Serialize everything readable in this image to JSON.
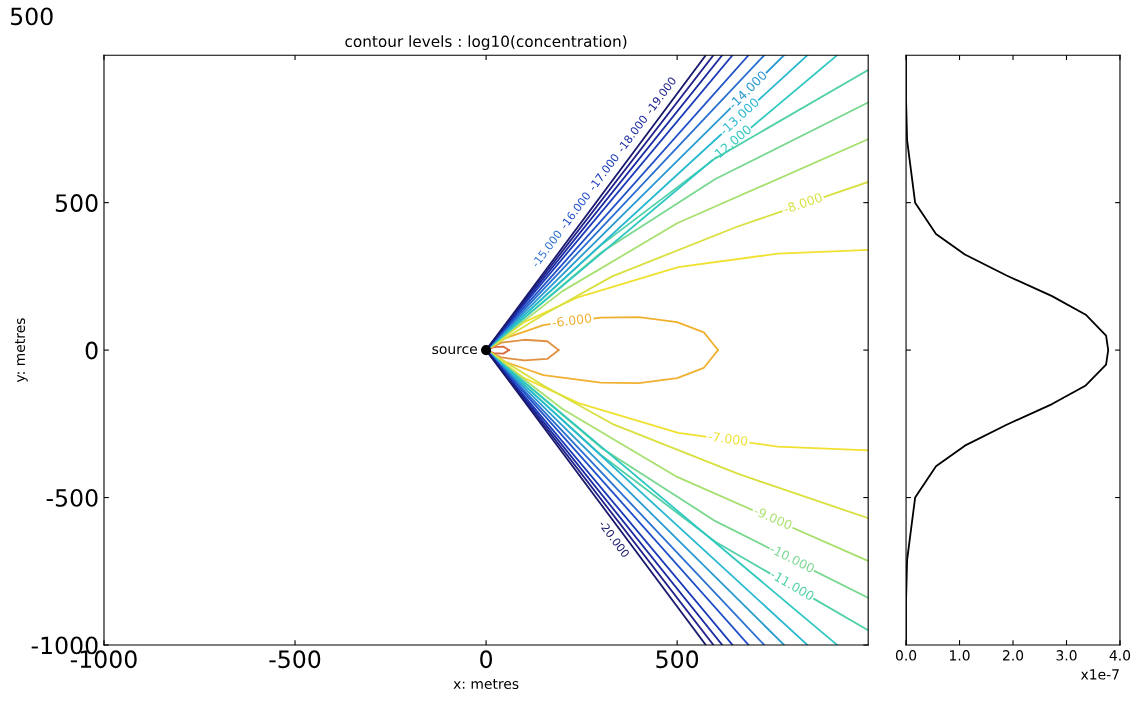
{
  "chart_data": [
    {
      "type": "line",
      "title": "contour levels : log10(concentration)",
      "xlabel": "x: metres",
      "ylabel": "y: metres",
      "annotations": [
        "500"
      ],
      "xlim": [
        -1000,
        1000
      ],
      "xticks": [
        -1000,
        -500,
        0,
        500
      ],
      "ylim": [
        -1000,
        1000
      ],
      "yticks": [
        -1000,
        -500,
        0,
        500
      ],
      "grid": false,
      "legend": false,
      "marker": "none",
      "line_style": "solid",
      "series": [
        {
          "color": "#d86a40",
          "x": [
            0,
            20,
            45,
            60
          ],
          "values": [
            0,
            10,
            12,
            0
          ]
        },
        {
          "color": "#d86a40",
          "x": [
            0,
            20,
            45,
            60
          ],
          "values": [
            0,
            -10,
            -12,
            0
          ]
        },
        {
          "color": "#e09040",
          "x": [
            0,
            40,
            100,
            160,
            190
          ],
          "values": [
            0,
            25,
            35,
            30,
            0
          ]
        },
        {
          "color": "#e09040",
          "x": [
            0,
            40,
            100,
            160,
            190
          ],
          "values": [
            0,
            -25,
            -35,
            -30,
            0
          ]
        },
        {
          "name": "-6.000",
          "color": "#f0b030",
          "x": [
            0,
            50,
            150,
            300,
            400,
            500,
            570,
            607
          ],
          "values": [
            0,
            40,
            85,
            110,
            112,
            95,
            60,
            0
          ]
        },
        {
          "color": "#f0b030",
          "x": [
            0,
            50,
            150,
            300,
            400,
            500,
            570,
            607
          ],
          "values": [
            0,
            -40,
            -85,
            -110,
            -112,
            -95,
            -60,
            0
          ]
        },
        {
          "color": "#f0e030",
          "x": [
            0,
            100,
            242,
            503,
            763,
            1000
          ],
          "values": [
            0,
            95,
            180,
            281,
            327,
            340
          ]
        },
        {
          "name": "-7.000",
          "color": "#f0e030",
          "x": [
            0,
            100,
            242,
            503,
            763,
            1000
          ],
          "values": [
            0,
            -95,
            -180,
            -281,
            -327,
            -340
          ]
        },
        {
          "name": "-8.000",
          "color": "#d8e040",
          "x": [
            0,
            150,
            330,
            660,
            1000
          ],
          "values": [
            0,
            120,
            250,
            420,
            570
          ]
        },
        {
          "color": "#d8e040",
          "x": [
            0,
            150,
            330,
            660,
            1000
          ],
          "values": [
            0,
            -120,
            -250,
            -420,
            -570
          ]
        },
        {
          "color": "#a8e070",
          "x": [
            0,
            200,
            500,
            1000
          ],
          "values": [
            0,
            200,
            430,
            715
          ]
        },
        {
          "name": "-9.000",
          "color": "#a8e070",
          "x": [
            0,
            200,
            500,
            1000
          ],
          "values": [
            0,
            -200,
            -430,
            -715
          ]
        },
        {
          "color": "#78d890",
          "x": [
            0,
            300,
            600,
            1000
          ],
          "values": [
            0,
            330,
            580,
            840
          ]
        },
        {
          "name": "-10.000",
          "color": "#78d890",
          "x": [
            0,
            300,
            600,
            1000
          ],
          "values": [
            0,
            -330,
            -580,
            -840
          ]
        },
        {
          "color": "#50d0a8",
          "x": [
            0,
            300,
            600,
            1000
          ],
          "values": [
            0,
            355,
            650,
            950
          ]
        },
        {
          "name": "-11.000",
          "color": "#50d0a8",
          "x": [
            0,
            300,
            600,
            1000
          ],
          "values": [
            0,
            -355,
            -650,
            -950
          ]
        },
        {
          "name": "-12.000",
          "color": "#30c8c0",
          "x": [
            0,
            919
          ],
          "values": [
            0,
            1000
          ]
        },
        {
          "color": "#30c8c0",
          "x": [
            0,
            919
          ],
          "values": [
            0,
            -1000
          ]
        },
        {
          "name": "-13.000",
          "color": "#28b8d0",
          "x": [
            0,
            841
          ],
          "values": [
            0,
            1000
          ]
        },
        {
          "color": "#28b8d0",
          "x": [
            0,
            841
          ],
          "values": [
            0,
            -1000
          ]
        },
        {
          "name": "-14.000",
          "color": "#2a9ad0",
          "x": [
            0,
            780
          ],
          "values": [
            0,
            1000
          ]
        },
        {
          "color": "#2a9ad0",
          "x": [
            0,
            780
          ],
          "values": [
            0,
            -1000
          ]
        },
        {
          "name": "-15.000",
          "color": "#2a70d0",
          "x": [
            0,
            728
          ],
          "values": [
            0,
            1000
          ]
        },
        {
          "color": "#2a70d0",
          "x": [
            0,
            728
          ],
          "values": [
            0,
            -1000
          ]
        },
        {
          "name": "-16.000",
          "color": "#2050c8",
          "x": [
            0,
            687
          ],
          "values": [
            0,
            1000
          ]
        },
        {
          "color": "#2050c8",
          "x": [
            0,
            687
          ],
          "values": [
            0,
            -1000
          ]
        },
        {
          "name": "-17.000",
          "color": "#1a3ab8",
          "x": [
            0,
            645
          ],
          "values": [
            0,
            1000
          ]
        },
        {
          "color": "#1a3ab8",
          "x": [
            0,
            645
          ],
          "values": [
            0,
            -1000
          ]
        },
        {
          "name": "-18.000",
          "color": "#1a2aa0",
          "x": [
            0,
            618
          ],
          "values": [
            0,
            1000
          ]
        },
        {
          "color": "#1a2aa0",
          "x": [
            0,
            618
          ],
          "values": [
            0,
            -1000
          ]
        },
        {
          "name": "-19.000",
          "color": "#20208a",
          "x": [
            0,
            595
          ],
          "values": [
            0,
            1000
          ]
        },
        {
          "color": "#20208a",
          "x": [
            0,
            595
          ],
          "values": [
            0,
            -1000
          ]
        },
        {
          "color": "#1a1a6e",
          "x": [
            0,
            575
          ],
          "values": [
            0,
            1000
          ]
        },
        {
          "name": "-20.000",
          "color": "#1a1a6e",
          "x": [
            0,
            575
          ],
          "values": [
            0,
            -1000
          ]
        },
        {
          "type": "scatter",
          "name": "source",
          "color": "#000000",
          "marker": "circle",
          "x": [
            0
          ],
          "values": [
            0
          ]
        }
      ]
    },
    {
      "type": "line",
      "xlabel": "x1e-7",
      "xlim": [
        0,
        4
      ],
      "xticks": [
        {
          "value": 0,
          "label": "0.0"
        },
        {
          "value": 1,
          "label": "1.0"
        },
        {
          "value": 2,
          "label": "2.0"
        },
        {
          "value": 3,
          "label": "3.0"
        },
        {
          "value": 4,
          "label": "4.0"
        }
      ],
      "ylim": [
        -1000,
        1000
      ],
      "yticks": [
        {
          "value": -500,
          "label": null
        },
        {
          "value": 0,
          "label": null
        },
        {
          "value": 500,
          "label": null
        }
      ],
      "tick_labels": "x",
      "grid": false,
      "legend": false,
      "series": [
        {
          "color": "#000000",
          "x": [
            0,
            0,
            0.02,
            0.17,
            0.56,
            1.1,
            1.88,
            2.73,
            3.36,
            3.74,
            3.78,
            3.74,
            3.36,
            2.73,
            1.88,
            1.1,
            0.56,
            0.17,
            0.02,
            0,
            0
          ],
          "values": [
            1000,
            850,
            711,
            500,
            394,
            324,
            253,
            183,
            120,
            49,
            0,
            -49,
            -120,
            -183,
            -253,
            -324,
            -394,
            -500,
            -711,
            -850,
            -1000
          ]
        }
      ]
    }
  ]
}
